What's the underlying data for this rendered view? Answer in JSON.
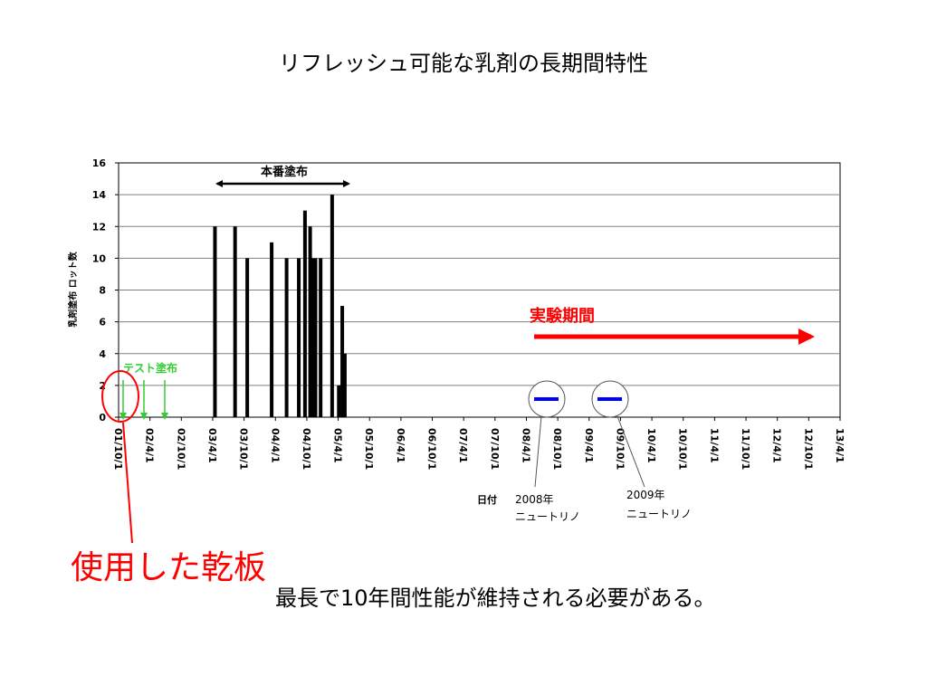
{
  "page": {
    "title": "リフレッシュ可能な乳剤の長期間特性",
    "used_plate_label": "使用した乾板",
    "conclusion": "最長で10年間性能が維持される必要がある。"
  },
  "chart_data": {
    "type": "bar",
    "title": "",
    "xlabel": "日付",
    "ylabel": "乳剤塗布 ロット数",
    "ylim": [
      0,
      16
    ],
    "yticks": [
      0,
      2,
      4,
      6,
      8,
      10,
      12,
      14,
      16
    ],
    "grid": true,
    "x_range": [
      "2001-10-01",
      "2013-04-01"
    ],
    "xtick_labels": [
      "01/10/1",
      "02/4/1",
      "02/10/1",
      "03/4/1",
      "03/10/1",
      "04/4/1",
      "04/10/1",
      "05/4/1",
      "05/10/1",
      "06/4/1",
      "06/10/1",
      "07/4/1",
      "07/10/1",
      "08/4/1",
      "08/10/1",
      "09/4/1",
      "09/10/1",
      "10/4/1",
      "10/10/1",
      "11/4/1",
      "11/10/1",
      "12/4/1",
      "12/10/1",
      "13/4/1"
    ],
    "colors": {
      "bars": "#000000",
      "test_arrows": "#33cc33",
      "experiment_arrow": "#ff0000",
      "neutrino_marker": "#0000ff",
      "used_plate_circle": "#ff0000"
    },
    "series": [
      {
        "values": [
          {
            "date": "2003-04-15",
            "value": 12
          },
          {
            "date": "2003-08-10",
            "value": 12
          },
          {
            "date": "2003-10-20",
            "value": 10
          },
          {
            "date": "2004-03-10",
            "value": 11
          },
          {
            "date": "2004-06-05",
            "value": 10
          },
          {
            "date": "2004-08-15",
            "value": 10
          },
          {
            "date": "2004-09-20",
            "value": 13
          },
          {
            "date": "2004-10-20",
            "value": 12
          },
          {
            "date": "2004-11-01",
            "value": 10
          },
          {
            "date": "2004-11-20",
            "value": 10
          },
          {
            "date": "2004-12-20",
            "value": 10
          },
          {
            "date": "2005-02-25",
            "value": 14
          },
          {
            "date": "2005-04-05",
            "value": 2
          },
          {
            "date": "2005-04-25",
            "value": 7
          },
          {
            "date": "2005-05-10",
            "value": 4
          }
        ]
      }
    ],
    "annotations": {
      "production_period": "本番塗布",
      "test_coating": "テスト塗布",
      "experiment_period": "実験期間",
      "neutrino_2008": {
        "year": "2008年",
        "label": "ニュートリノ"
      },
      "neutrino_2009": {
        "year": "2009年",
        "label": "ニュートリノ"
      }
    }
  }
}
